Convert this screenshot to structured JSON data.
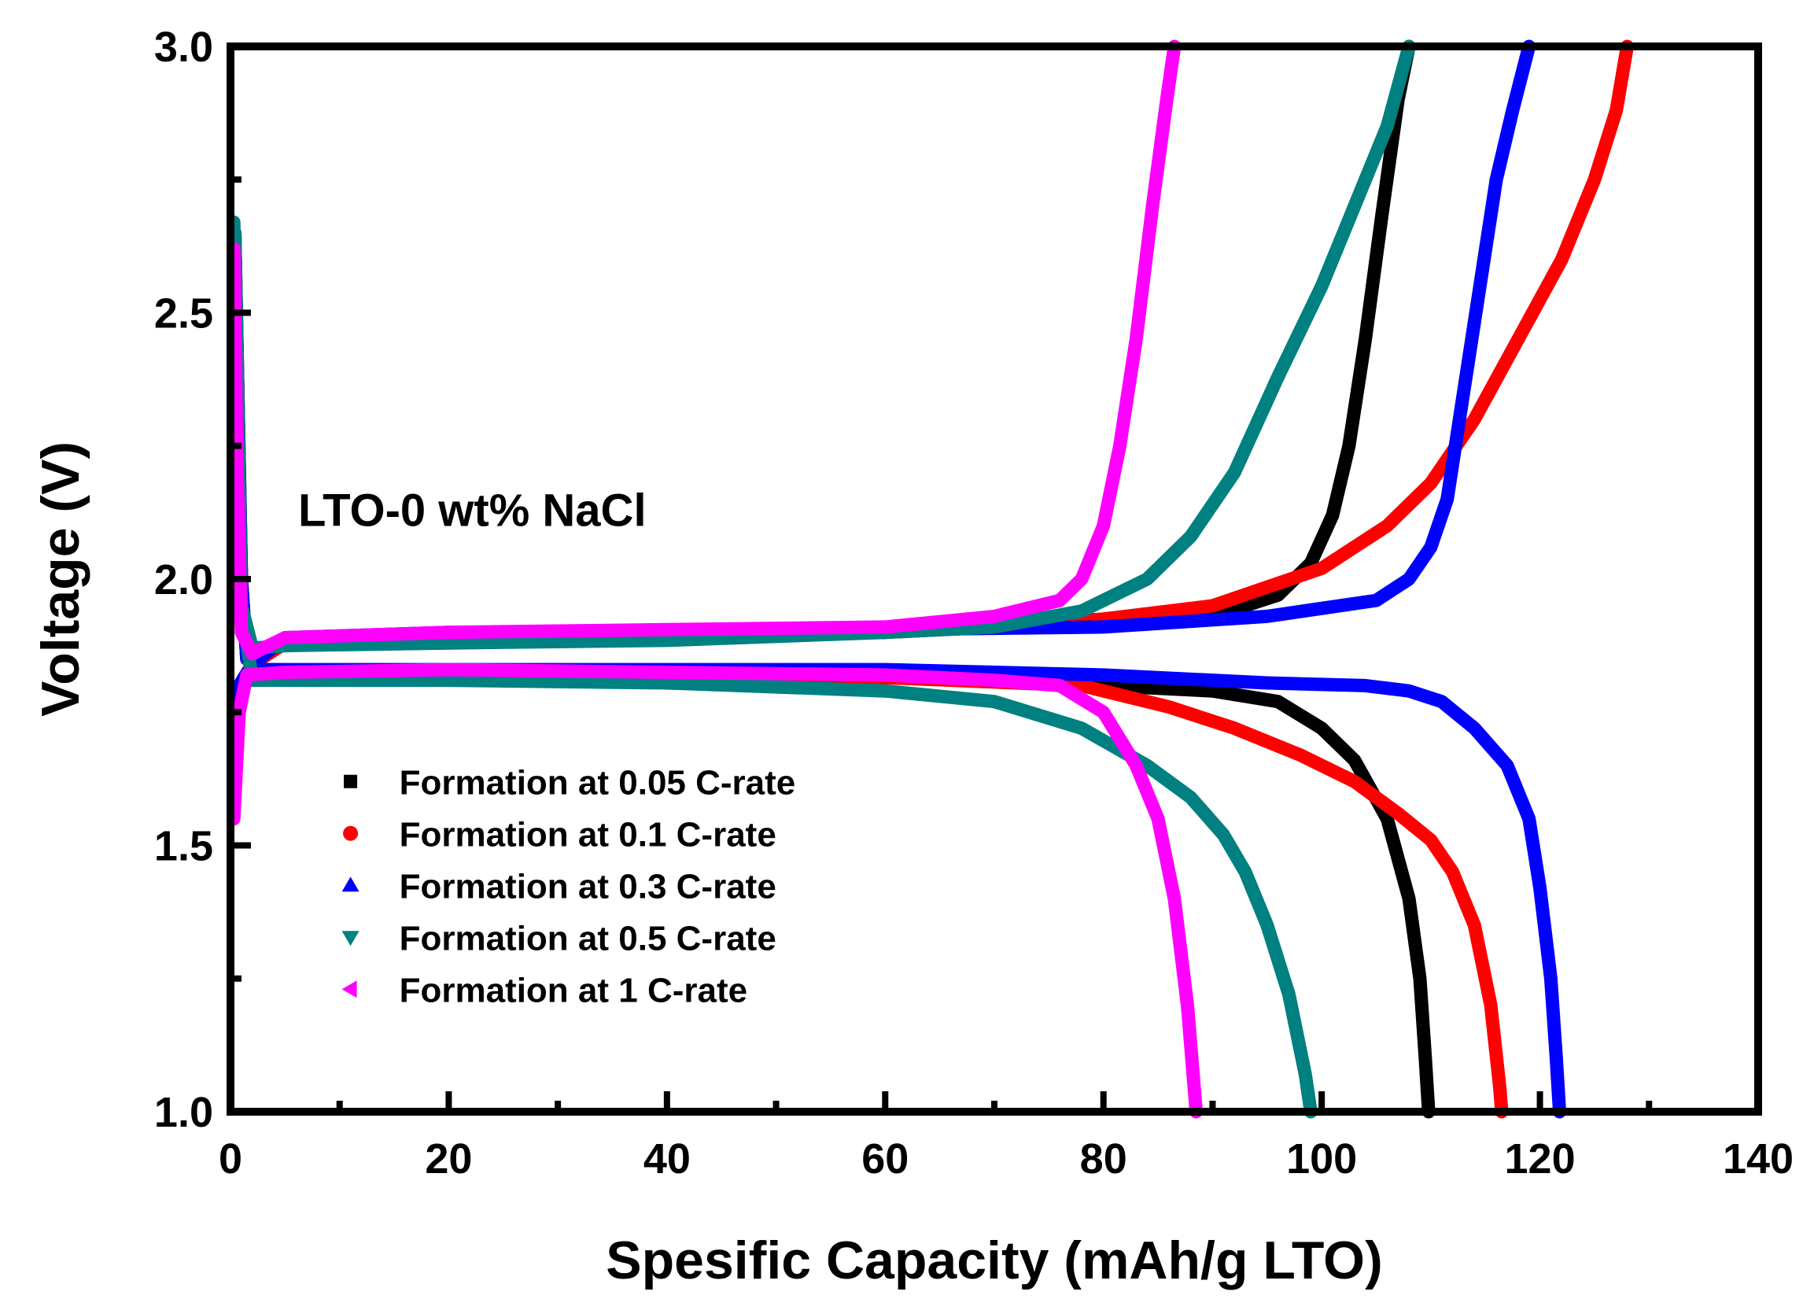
{
  "chart_data": {
    "type": "line",
    "title": "",
    "xlabel": "Spesific Capacity (mAh/g LTO)",
    "ylabel": "Voltage (V)",
    "xlim": [
      0,
      140
    ],
    "ylim": [
      1.0,
      3.0
    ],
    "xticks": [
      0,
      20,
      40,
      60,
      80,
      100,
      120,
      140
    ],
    "yticks": [
      1.0,
      1.5,
      2.0,
      2.5,
      3.0
    ],
    "xtick_labels": [
      "0",
      "20",
      "40",
      "60",
      "80",
      "100",
      "120",
      "140"
    ],
    "ytick_labels": [
      "1.0",
      "1.5",
      "2.0",
      "2.5",
      "3.0"
    ],
    "annotation": "LTO-0 wt% NaCl",
    "legend_position": "lower-left",
    "grid": false,
    "series": [
      {
        "name": "Formation at 0.05 C-rate",
        "color": "#000000",
        "marker": "square",
        "charge": [
          [
            0.3,
            1.56
          ],
          [
            0.8,
            1.8
          ],
          [
            2,
            1.84
          ],
          [
            5,
            1.88
          ],
          [
            20,
            1.89
          ],
          [
            40,
            1.895
          ],
          [
            60,
            1.9
          ],
          [
            80,
            1.92
          ],
          [
            90,
            1.93
          ],
          [
            96,
            1.97
          ],
          [
            99,
            2.03
          ],
          [
            101,
            2.12
          ],
          [
            102.5,
            2.25
          ],
          [
            104,
            2.45
          ],
          [
            105.5,
            2.68
          ],
          [
            107,
            2.9
          ],
          [
            108,
            3.0
          ]
        ],
        "discharge": [
          [
            0.4,
            2.65
          ],
          [
            1,
            2.0
          ],
          [
            1.5,
            1.85
          ],
          [
            3,
            1.83
          ],
          [
            20,
            1.825
          ],
          [
            40,
            1.82
          ],
          [
            60,
            1.815
          ],
          [
            80,
            1.8
          ],
          [
            90,
            1.79
          ],
          [
            96,
            1.77
          ],
          [
            100,
            1.72
          ],
          [
            103,
            1.66
          ],
          [
            106,
            1.55
          ],
          [
            108,
            1.4
          ],
          [
            109,
            1.25
          ],
          [
            109.5,
            1.1
          ],
          [
            109.8,
            1.0
          ]
        ]
      },
      {
        "name": "Formation at 0.1 C-rate",
        "color": "#ff0000",
        "marker": "circle",
        "charge": [
          [
            0.3,
            1.56
          ],
          [
            0.8,
            1.8
          ],
          [
            2,
            1.84
          ],
          [
            5,
            1.88
          ],
          [
            20,
            1.89
          ],
          [
            40,
            1.895
          ],
          [
            60,
            1.9
          ],
          [
            80,
            1.925
          ],
          [
            90,
            1.95
          ],
          [
            100,
            2.02
          ],
          [
            106,
            2.1
          ],
          [
            110,
            2.18
          ],
          [
            114,
            2.3
          ],
          [
            118,
            2.45
          ],
          [
            122,
            2.6
          ],
          [
            125,
            2.75
          ],
          [
            127,
            2.88
          ],
          [
            128,
            3.0
          ]
        ],
        "discharge": [
          [
            0.4,
            2.65
          ],
          [
            1,
            2.0
          ],
          [
            1.5,
            1.85
          ],
          [
            3,
            1.83
          ],
          [
            20,
            1.825
          ],
          [
            40,
            1.82
          ],
          [
            60,
            1.815
          ],
          [
            78,
            1.8
          ],
          [
            86,
            1.76
          ],
          [
            92,
            1.72
          ],
          [
            98,
            1.67
          ],
          [
            103,
            1.62
          ],
          [
            107,
            1.56
          ],
          [
            110,
            1.51
          ],
          [
            112,
            1.45
          ],
          [
            114,
            1.35
          ],
          [
            115.5,
            1.2
          ],
          [
            116.3,
            1.05
          ],
          [
            116.5,
            1.0
          ]
        ]
      },
      {
        "name": "Formation at 0.3 C-rate",
        "color": "#0000ff",
        "marker": "triangle-up",
        "charge": [
          [
            0.3,
            1.56
          ],
          [
            0.8,
            1.8
          ],
          [
            2,
            1.84
          ],
          [
            5,
            1.89
          ],
          [
            20,
            1.9
          ],
          [
            40,
            1.9
          ],
          [
            60,
            1.905
          ],
          [
            80,
            1.91
          ],
          [
            95,
            1.93
          ],
          [
            105,
            1.96
          ],
          [
            108,
            2.0
          ],
          [
            110,
            2.06
          ],
          [
            111.5,
            2.15
          ],
          [
            113,
            2.35
          ],
          [
            114.5,
            2.55
          ],
          [
            116,
            2.75
          ],
          [
            117.5,
            2.88
          ],
          [
            119,
            3.0
          ]
        ],
        "discharge": [
          [
            0.4,
            2.65
          ],
          [
            1,
            2.0
          ],
          [
            1.5,
            1.85
          ],
          [
            3,
            1.83
          ],
          [
            20,
            1.83
          ],
          [
            40,
            1.83
          ],
          [
            60,
            1.83
          ],
          [
            80,
            1.82
          ],
          [
            95,
            1.805
          ],
          [
            104,
            1.8
          ],
          [
            108,
            1.79
          ],
          [
            111,
            1.77
          ],
          [
            114,
            1.72
          ],
          [
            117,
            1.65
          ],
          [
            119,
            1.55
          ],
          [
            120,
            1.42
          ],
          [
            121,
            1.25
          ],
          [
            121.5,
            1.1
          ],
          [
            121.8,
            1.0
          ]
        ]
      },
      {
        "name": "Formation at 0.5 C-rate",
        "color": "#008080",
        "marker": "triangle-down",
        "charge": [
          [
            0.3,
            2.67
          ],
          [
            0.6,
            2.3
          ],
          [
            1,
            1.95
          ],
          [
            2,
            1.87
          ],
          [
            5,
            1.875
          ],
          [
            20,
            1.88
          ],
          [
            40,
            1.885
          ],
          [
            60,
            1.9
          ],
          [
            70,
            1.91
          ],
          [
            78,
            1.94
          ],
          [
            84,
            2.0
          ],
          [
            88,
            2.08
          ],
          [
            92,
            2.2
          ],
          [
            96,
            2.38
          ],
          [
            100,
            2.55
          ],
          [
            103,
            2.7
          ],
          [
            106,
            2.85
          ],
          [
            108,
            3.0
          ]
        ],
        "discharge": [
          [
            0.4,
            2.65
          ],
          [
            1,
            1.95
          ],
          [
            2,
            1.81
          ],
          [
            5,
            1.81
          ],
          [
            20,
            1.81
          ],
          [
            40,
            1.805
          ],
          [
            60,
            1.79
          ],
          [
            70,
            1.77
          ],
          [
            78,
            1.72
          ],
          [
            84,
            1.65
          ],
          [
            88,
            1.59
          ],
          [
            91,
            1.52
          ],
          [
            93,
            1.45
          ],
          [
            95,
            1.35
          ],
          [
            97,
            1.22
          ],
          [
            98.5,
            1.07
          ],
          [
            99,
            1.0
          ]
        ]
      },
      {
        "name": "Formation at 1 C-rate",
        "color": "#ff00ff",
        "marker": "triangle-left",
        "charge": [
          [
            0.3,
            2.62
          ],
          [
            0.6,
            2.2
          ],
          [
            1,
            1.9
          ],
          [
            2,
            1.86
          ],
          [
            5,
            1.89
          ],
          [
            20,
            1.9
          ],
          [
            40,
            1.905
          ],
          [
            60,
            1.91
          ],
          [
            70,
            1.93
          ],
          [
            76,
            1.96
          ],
          [
            78,
            2.0
          ],
          [
            80,
            2.1
          ],
          [
            81.5,
            2.25
          ],
          [
            83,
            2.45
          ],
          [
            84.5,
            2.7
          ],
          [
            85.8,
            2.9
          ],
          [
            86.5,
            3.0
          ]
        ],
        "discharge": [
          [
            0.3,
            1.55
          ],
          [
            0.8,
            1.75
          ],
          [
            1.5,
            1.82
          ],
          [
            5,
            1.825
          ],
          [
            20,
            1.83
          ],
          [
            40,
            1.825
          ],
          [
            60,
            1.82
          ],
          [
            70,
            1.81
          ],
          [
            76,
            1.8
          ],
          [
            80,
            1.75
          ],
          [
            83,
            1.65
          ],
          [
            85,
            1.55
          ],
          [
            86.5,
            1.4
          ],
          [
            87.7,
            1.2
          ],
          [
            88.3,
            1.05
          ],
          [
            88.5,
            1.0
          ]
        ]
      }
    ]
  }
}
